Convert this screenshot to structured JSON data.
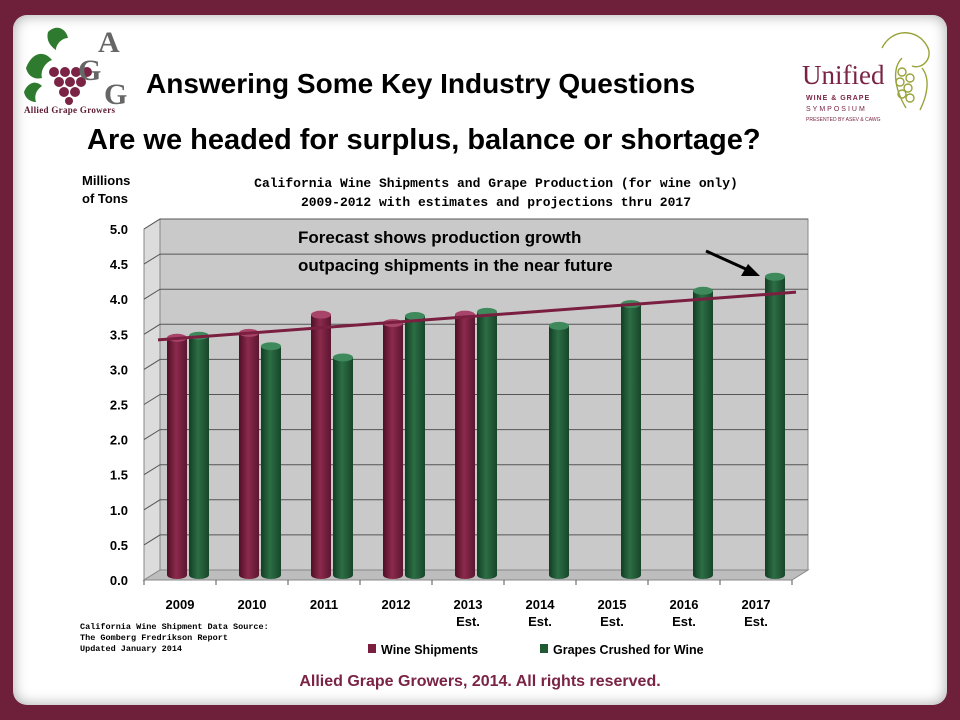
{
  "slide": {
    "title": "Answering Some Key Industry Questions",
    "subtitle": "Are we headed for surplus, balance or shortage?",
    "footer": "Allied Grape Growers, 2014.  All rights reserved."
  },
  "logos": {
    "left": {
      "letters": "AGG",
      "name": "Allied Grape Growers"
    },
    "right": {
      "word": "Unified",
      "line1": "WINE & GRAPE",
      "line2": "SYMPOSIUM",
      "line3": "PRESENTED BY ASEV & CAWG"
    }
  },
  "chart_data": {
    "type": "bar",
    "title": [
      "California Wine Shipments and Grape Production (for wine only)",
      "2009-2012 with estimates and projections thru 2017"
    ],
    "ylabel": [
      "Millions",
      "of Tons"
    ],
    "ylim": [
      0,
      5.0
    ],
    "yticks": [
      "0.0",
      "0.5",
      "1.0",
      "1.5",
      "2.0",
      "2.5",
      "3.0",
      "3.5",
      "4.0",
      "4.5",
      "5.0"
    ],
    "categories": [
      {
        "year": "2009",
        "note": ""
      },
      {
        "year": "2010",
        "note": ""
      },
      {
        "year": "2011",
        "note": ""
      },
      {
        "year": "2012",
        "note": ""
      },
      {
        "year": "2013",
        "note": "Est."
      },
      {
        "year": "2014",
        "note": "Est."
      },
      {
        "year": "2015",
        "note": "Est."
      },
      {
        "year": "2016",
        "note": "Est."
      },
      {
        "year": "2017",
        "note": "Est."
      }
    ],
    "series": [
      {
        "name": "Wine Shipments",
        "color": "#7a1f40",
        "values": [
          3.45,
          3.52,
          3.78,
          3.66,
          3.78,
          null,
          null,
          null,
          null
        ]
      },
      {
        "name": "Grapes Crushed for Wine",
        "color": "#1f5a35",
        "values": [
          3.48,
          3.33,
          3.17,
          3.76,
          3.82,
          3.62,
          3.93,
          4.12,
          4.32
        ]
      }
    ],
    "trendline": {
      "color": "#7a1f40",
      "start": 3.42,
      "end": 4.1
    },
    "annotation": [
      "Forecast shows production growth",
      "outpacing shipments in the near future"
    ],
    "grid": true,
    "legend": "bottom",
    "source": [
      "California Wine Shipment Data Source:",
      "The Gomberg Fredrikson Report",
      "Updated January 2014"
    ]
  }
}
